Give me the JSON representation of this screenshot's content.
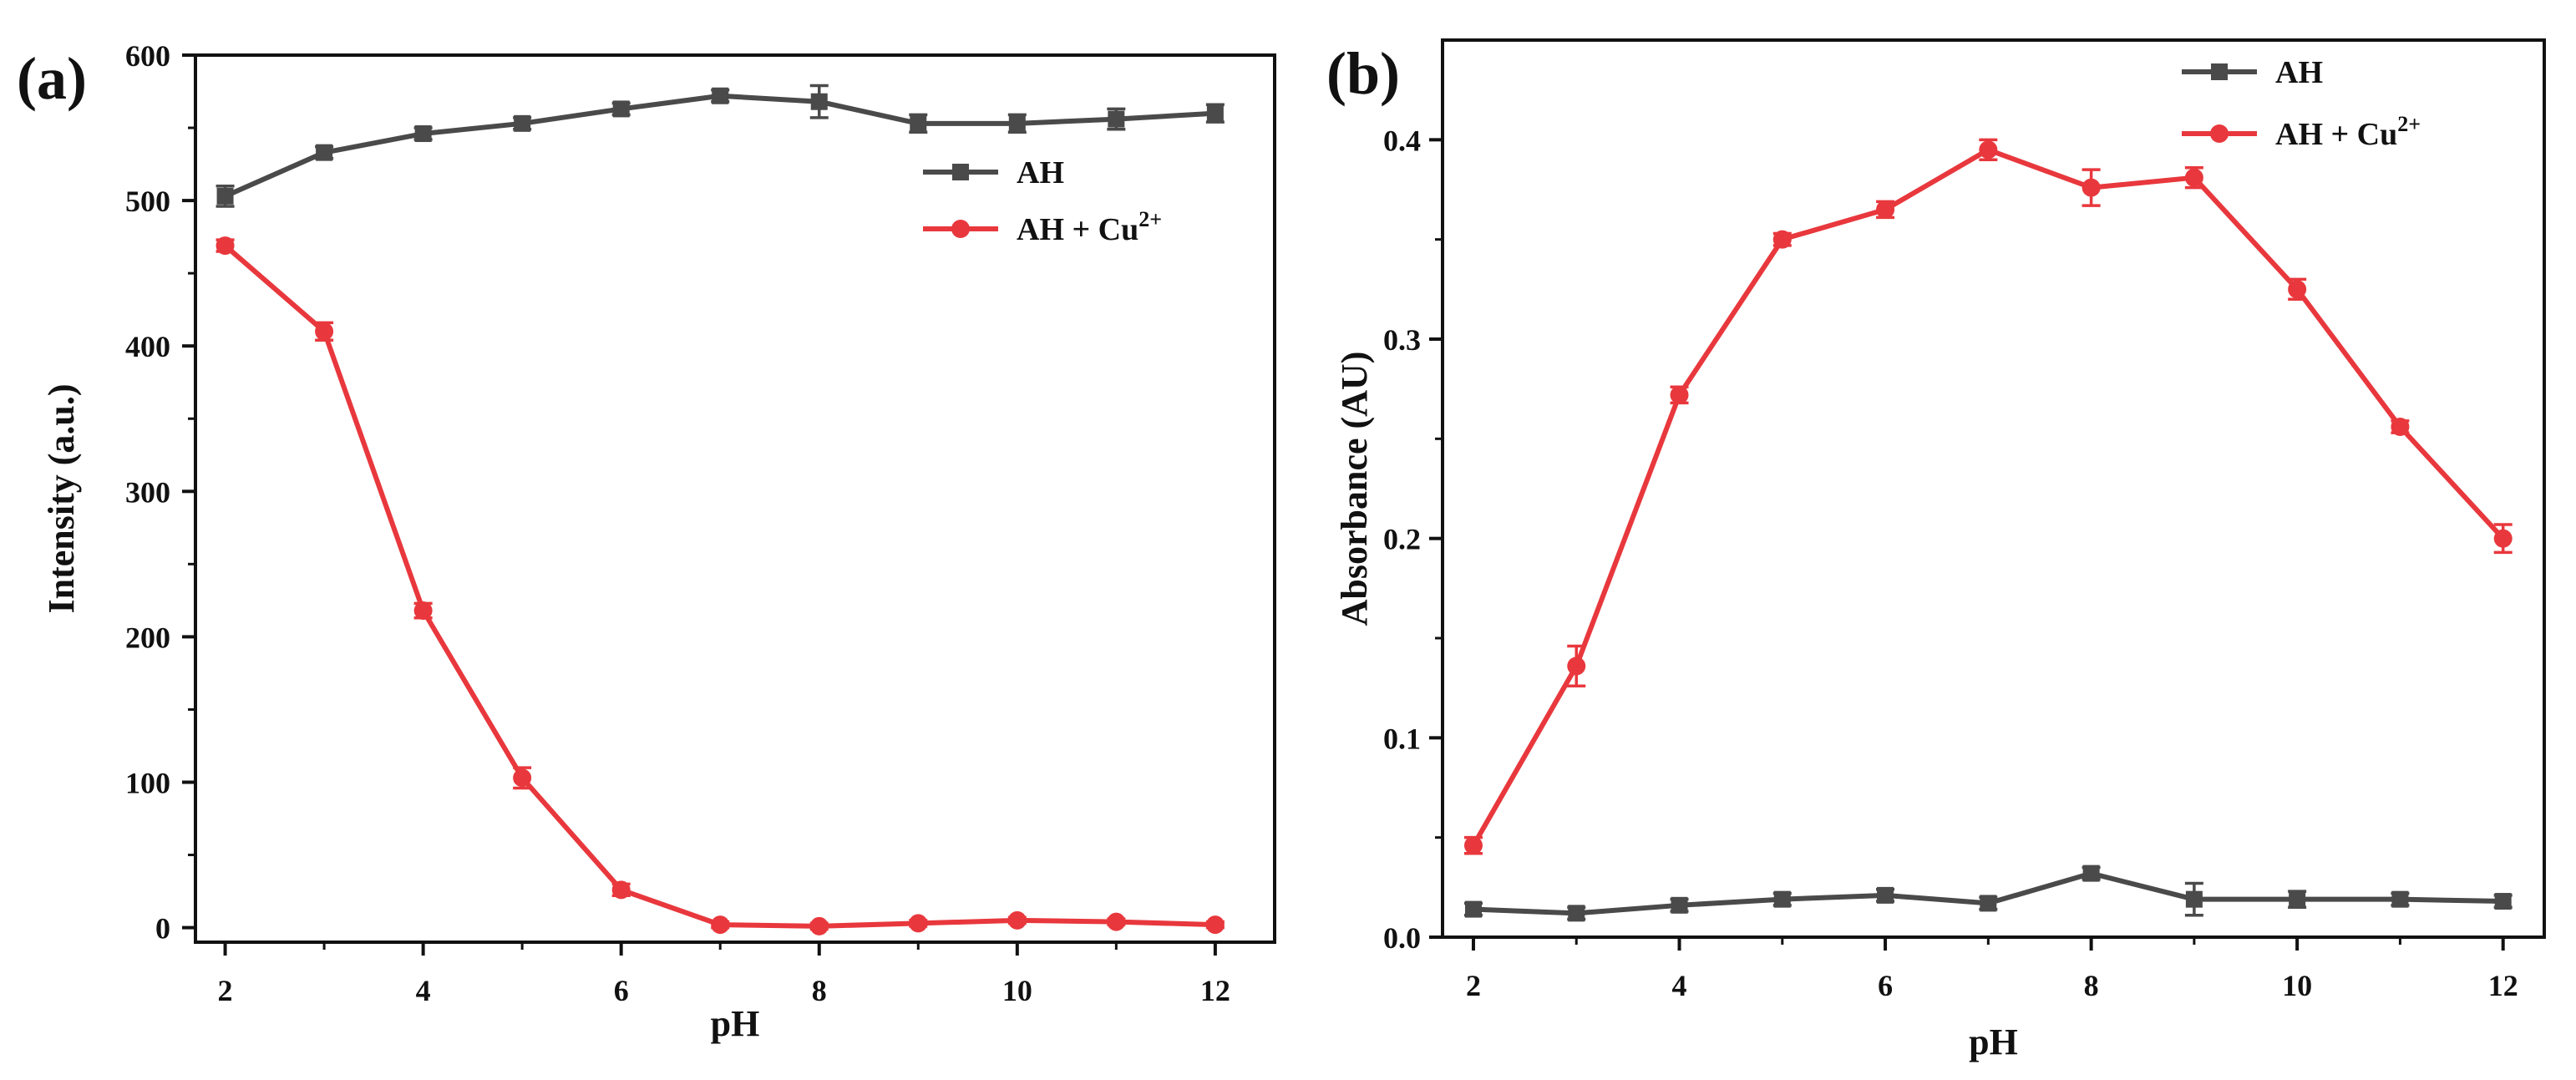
{
  "chart_data": [
    {
      "id": "a",
      "panel_label": "(a)",
      "type": "line",
      "xlabel": "pH",
      "ylabel": "Intensity (a.u.)",
      "xlim": [
        1.7,
        12.6
      ],
      "ylim": [
        -10,
        600
      ],
      "xticks": [
        "2",
        "4",
        "6",
        "8",
        "10",
        "12"
      ],
      "yticks": [
        "0",
        "100",
        "200",
        "300",
        "400",
        "500",
        "600"
      ],
      "legend": "top-right",
      "series": [
        {
          "name": "AH",
          "label_main": "AH",
          "label_sup": "",
          "color": "#4a4a4a",
          "marker": "square",
          "x": [
            2,
            3,
            4,
            5,
            6,
            7,
            8,
            9,
            10,
            11,
            12
          ],
          "y": [
            503,
            533,
            546,
            553,
            563,
            572,
            568,
            553,
            553,
            556,
            560
          ],
          "err": [
            7,
            4,
            4,
            4,
            4,
            4,
            11,
            6,
            6,
            7,
            6
          ]
        },
        {
          "name": "AH + Cu2+",
          "label_main": "AH + Cu",
          "label_sup": "2+",
          "color": "#e8383d",
          "marker": "circle",
          "x": [
            2,
            3,
            4,
            5,
            6,
            7,
            8,
            9,
            10,
            11,
            12
          ],
          "y": [
            469,
            410,
            218,
            103,
            26,
            2,
            1,
            3,
            5,
            4,
            2
          ],
          "err": [
            4,
            6,
            5,
            7,
            4,
            2,
            2,
            2,
            2,
            2,
            2
          ]
        }
      ]
    },
    {
      "id": "b",
      "panel_label": "(b)",
      "type": "line",
      "xlabel": "pH",
      "ylabel": "Absorbance (AU)",
      "xlim": [
        1.7,
        12.4
      ],
      "ylim": [
        0,
        0.45
      ],
      "xticks": [
        "2",
        "4",
        "6",
        "8",
        "10",
        "12"
      ],
      "yticks": [
        "0.0",
        "0.1",
        "0.2",
        "0.3",
        "0.4"
      ],
      "legend": "top-right",
      "series": [
        {
          "name": "AH",
          "label_main": "AH",
          "label_sup": "",
          "color": "#4a4a4a",
          "marker": "square",
          "x": [
            2,
            3,
            4,
            5,
            6,
            7,
            8,
            9,
            10,
            11,
            12
          ],
          "y": [
            0.014,
            0.012,
            0.016,
            0.019,
            0.021,
            0.017,
            0.032,
            0.019,
            0.019,
            0.019,
            0.018
          ],
          "err": [
            0.003,
            0.003,
            0.003,
            0.003,
            0.003,
            0.003,
            0.003,
            0.008,
            0.004,
            0.003,
            0.003
          ]
        },
        {
          "name": "AH + Cu2+",
          "label_main": "AH + Cu",
          "label_sup": "2+",
          "color": "#e8383d",
          "marker": "circle",
          "x": [
            2,
            3,
            4,
            5,
            6,
            7,
            8,
            9,
            10,
            11,
            12
          ],
          "y": [
            0.046,
            0.136,
            0.272,
            0.35,
            0.365,
            0.395,
            0.376,
            0.381,
            0.325,
            0.256,
            0.2
          ],
          "err": [
            0.004,
            0.01,
            0.004,
            0.003,
            0.004,
            0.005,
            0.009,
            0.005,
            0.005,
            0.003,
            0.007
          ]
        }
      ]
    }
  ]
}
